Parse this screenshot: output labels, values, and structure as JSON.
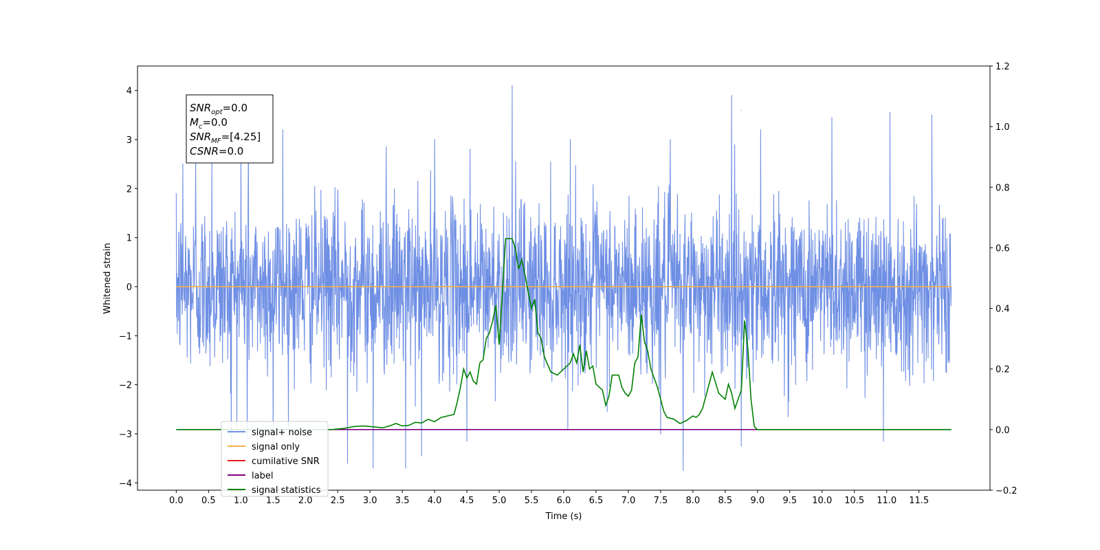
{
  "chart_data": {
    "type": "line",
    "xlabel": "Time (s)",
    "ylabel": "Whitened strain",
    "xlim": [
      -0.6,
      12.6
    ],
    "ylim": [
      -4.15,
      4.5
    ],
    "y2lim": [
      -0.2,
      1.2
    ],
    "x_ticks": [
      "0.0",
      "0.5",
      "1.0",
      "1.5",
      "2.0",
      "2.5",
      "3.0",
      "3.5",
      "4.0",
      "4.5",
      "5.0",
      "5.5",
      "6.0",
      "6.5",
      "7.0",
      "7.5",
      "8.0",
      "8.5",
      "9.0",
      "9.5",
      "10.0",
      "10.5",
      "11.0",
      "11.5"
    ],
    "y_ticks": [
      "4",
      "3",
      "2",
      "1",
      "0",
      "−1",
      "−2",
      "−3",
      "−4"
    ],
    "y2_ticks": [
      "1.2",
      "1.0",
      "0.8",
      "0.6",
      "0.4",
      "0.2",
      "0.0",
      "−0.2"
    ],
    "grid": false,
    "legend_position": "lower-left",
    "info_box": {
      "lines": [
        {
          "base": "SNR",
          "sub": "opt",
          "value": "=0.0"
        },
        {
          "base": "M",
          "sub": "c",
          "value": "=0.0"
        },
        {
          "base": "SNR",
          "sub": "MF",
          "value": "=[4.25]"
        },
        {
          "base": "CSNR",
          "sub": "",
          "value": "=0.0"
        }
      ]
    },
    "series": [
      {
        "name": "signal+ noise",
        "color": "#6f8fe4",
        "axis": "left",
        "kind": "noise",
        "x_range": [
          0.0,
          12.0
        ],
        "spread_sd": 0.85,
        "spikes": [
          {
            "x": 0.0,
            "y": 1.9
          },
          {
            "x": 0.1,
            "y": 2.5
          },
          {
            "x": 0.3,
            "y": 2.65
          },
          {
            "x": 0.55,
            "y": 2.7
          },
          {
            "x": 1.0,
            "y": 2.9
          },
          {
            "x": 1.12,
            "y": 3.0
          },
          {
            "x": 1.65,
            "y": 3.2
          },
          {
            "x": 3.25,
            "y": 2.85
          },
          {
            "x": 4.0,
            "y": 3.0
          },
          {
            "x": 4.55,
            "y": 2.8
          },
          {
            "x": 5.2,
            "y": 4.1
          },
          {
            "x": 6.1,
            "y": 3.0
          },
          {
            "x": 7.65,
            "y": 3.0
          },
          {
            "x": 8.6,
            "y": 3.9
          },
          {
            "x": 8.75,
            "y": 3.6
          },
          {
            "x": 9.05,
            "y": 3.2
          },
          {
            "x": 10.15,
            "y": 3.45
          },
          {
            "x": 11.05,
            "y": 3.55
          },
          {
            "x": 11.7,
            "y": 3.5
          },
          {
            "x": 0.85,
            "y": -3.3
          },
          {
            "x": 1.1,
            "y": -3.1
          },
          {
            "x": 1.5,
            "y": -3.4
          },
          {
            "x": 2.65,
            "y": -3.6
          },
          {
            "x": 3.05,
            "y": -3.7
          },
          {
            "x": 3.55,
            "y": -3.7
          },
          {
            "x": 3.8,
            "y": -3.45
          },
          {
            "x": 4.5,
            "y": -3.15
          },
          {
            "x": 7.5,
            "y": -3.0
          },
          {
            "x": 7.85,
            "y": -3.75
          },
          {
            "x": 8.75,
            "y": -3.25
          },
          {
            "x": 10.95,
            "y": -3.15
          }
        ]
      },
      {
        "name": "signal only",
        "color": "#f5b04a",
        "axis": "left",
        "kind": "line",
        "x": [
          0.0,
          12.0
        ],
        "y": [
          0.0,
          0.0
        ]
      },
      {
        "name": "cumilative SNR",
        "color": "#e41a1c",
        "axis": "right",
        "kind": "line",
        "x": [],
        "y": []
      },
      {
        "name": "label",
        "color": "#800080",
        "axis": "right",
        "kind": "line",
        "x": [
          0.0,
          12.0
        ],
        "y": [
          0.0,
          0.0
        ]
      },
      {
        "name": "signal statistics",
        "color": "#008000",
        "axis": "right",
        "kind": "line",
        "x": [
          0.0,
          2.4,
          2.6,
          2.75,
          2.9,
          3.0,
          3.1,
          3.2,
          3.3,
          3.4,
          3.5,
          3.6,
          3.7,
          3.8,
          3.9,
          4.0,
          4.1,
          4.2,
          4.3,
          4.35,
          4.4,
          4.45,
          4.5,
          4.55,
          4.6,
          4.65,
          4.7,
          4.75,
          4.8,
          4.85,
          4.9,
          4.95,
          5.0,
          5.1,
          5.2,
          5.25,
          5.3,
          5.35,
          5.4,
          5.5,
          5.55,
          5.6,
          5.65,
          5.7,
          5.8,
          5.9,
          6.0,
          6.1,
          6.15,
          6.2,
          6.25,
          6.3,
          6.35,
          6.4,
          6.45,
          6.5,
          6.55,
          6.6,
          6.65,
          6.7,
          6.75,
          6.85,
          6.9,
          6.95,
          7.0,
          7.05,
          7.1,
          7.15,
          7.2,
          7.25,
          7.3,
          7.35,
          7.4,
          7.45,
          7.5,
          7.55,
          7.6,
          7.7,
          7.8,
          7.9,
          8.0,
          8.05,
          8.1,
          8.15,
          8.2,
          8.3,
          8.4,
          8.5,
          8.55,
          8.6,
          8.65,
          8.7,
          8.75,
          8.8,
          8.85,
          8.9,
          8.95,
          9.0,
          9.05,
          9.1,
          9.15,
          9.2,
          9.3,
          12.0
        ],
        "y": [
          0.0,
          0.0,
          0.004,
          0.01,
          0.012,
          0.01,
          0.008,
          0.006,
          0.012,
          0.02,
          0.012,
          0.014,
          0.024,
          0.022,
          0.034,
          0.026,
          0.04,
          0.045,
          0.05,
          0.09,
          0.14,
          0.2,
          0.17,
          0.19,
          0.16,
          0.15,
          0.22,
          0.23,
          0.3,
          0.32,
          0.36,
          0.41,
          0.28,
          0.63,
          0.63,
          0.6,
          0.53,
          0.56,
          0.51,
          0.4,
          0.43,
          0.32,
          0.3,
          0.24,
          0.19,
          0.18,
          0.2,
          0.22,
          0.25,
          0.22,
          0.28,
          0.19,
          0.26,
          0.2,
          0.21,
          0.15,
          0.14,
          0.13,
          0.08,
          0.11,
          0.18,
          0.18,
          0.14,
          0.12,
          0.11,
          0.13,
          0.22,
          0.24,
          0.38,
          0.29,
          0.26,
          0.2,
          0.17,
          0.14,
          0.1,
          0.06,
          0.04,
          0.035,
          0.02,
          0.03,
          0.045,
          0.04,
          0.05,
          0.07,
          0.11,
          0.19,
          0.12,
          0.1,
          0.15,
          0.12,
          0.07,
          0.1,
          0.13,
          0.36,
          0.27,
          0.1,
          0.01,
          0.0,
          0.0,
          0.0,
          0.0,
          0.0,
          0.0,
          0.0
        ]
      }
    ]
  }
}
